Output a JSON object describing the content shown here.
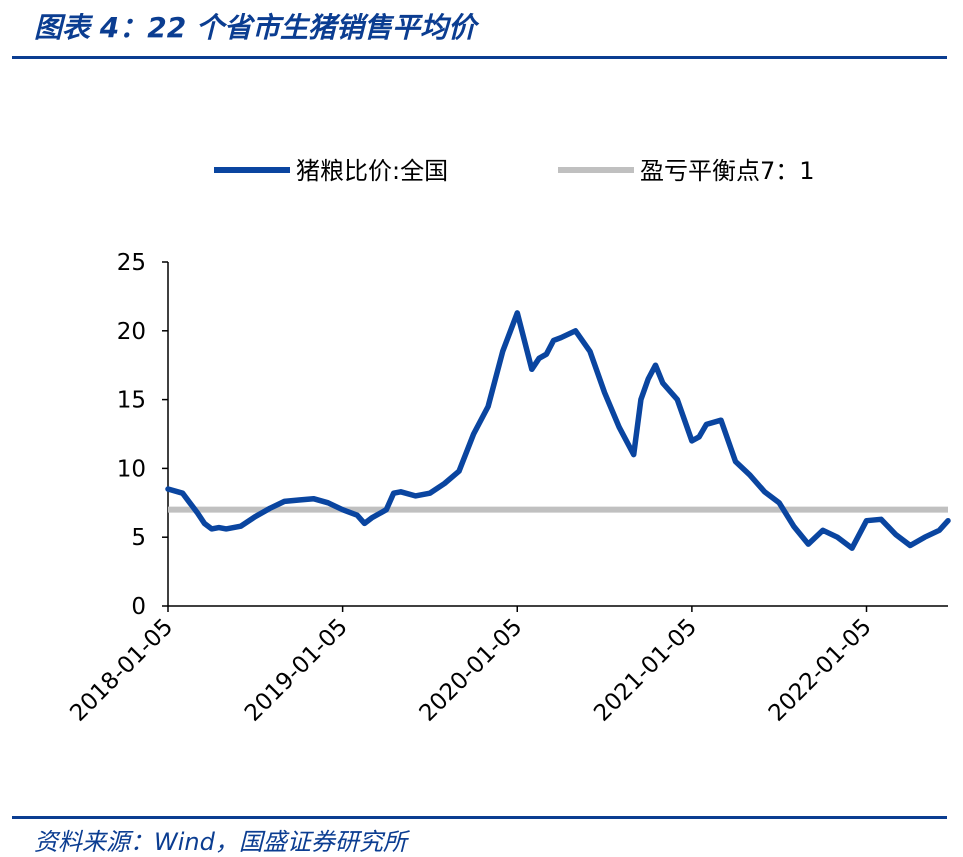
{
  "title": "图表 4：22 个省市生猪销售平均价",
  "source": "资料来源：Wind，国盛证券研究所",
  "colors": {
    "accent": "#0b3d91",
    "series_line": "#0a45a0",
    "breakeven_line": "#c0c0c0"
  },
  "chart_data": {
    "type": "line",
    "ylim": [
      0,
      25
    ],
    "yticks": [
      0,
      5,
      10,
      15,
      20,
      25
    ],
    "ytick_labels": [
      "0",
      "5",
      "10",
      "15",
      "20",
      "25"
    ],
    "xtick_labels": [
      "2018-01-05",
      "2019-01-05",
      "2020-01-05",
      "2021-01-05",
      "2022-01-05"
    ],
    "xtick_months": [
      0,
      12,
      24,
      36,
      48
    ],
    "x_range_months": [
      0,
      53.6
    ],
    "grid": false,
    "legend_position": "top",
    "series": [
      {
        "name": "猪粮比价:全国",
        "x_months": [
          0,
          1,
          1.5,
          2,
          2.5,
          3,
          3.5,
          4,
          5,
          6,
          7,
          8,
          9,
          10,
          11,
          12,
          13,
          13.5,
          14,
          15,
          15.5,
          16,
          17,
          18,
          19,
          20,
          21,
          22,
          23,
          24,
          25,
          25.5,
          26,
          26.5,
          27,
          28,
          29,
          30,
          31,
          32,
          32.5,
          33,
          33.5,
          34,
          35,
          36,
          36.5,
          37,
          38,
          39,
          40,
          41,
          42,
          43,
          44,
          45,
          46,
          47,
          48,
          49,
          50,
          51,
          52,
          53,
          53.6
        ],
        "values": [
          8.5,
          8.2,
          7.5,
          6.8,
          6.0,
          5.6,
          5.7,
          5.6,
          5.8,
          6.5,
          7.1,
          7.6,
          7.7,
          7.8,
          7.5,
          7.0,
          6.6,
          6.0,
          6.4,
          7.0,
          8.2,
          8.3,
          8.0,
          8.2,
          8.9,
          9.8,
          12.5,
          14.5,
          18.5,
          21.3,
          17.2,
          18.0,
          18.3,
          19.3,
          19.5,
          20.0,
          18.5,
          15.5,
          13.0,
          11.0,
          15.0,
          16.5,
          17.5,
          16.2,
          15.0,
          12.0,
          12.3,
          13.2,
          13.5,
          10.5,
          9.5,
          8.3,
          7.5,
          5.8,
          4.5,
          5.5,
          5.0,
          4.2,
          6.2,
          6.3,
          5.2,
          4.4,
          5.0,
          5.5,
          6.2
        ]
      },
      {
        "name": "盈亏平衡点7：1",
        "value": 7
      }
    ]
  }
}
